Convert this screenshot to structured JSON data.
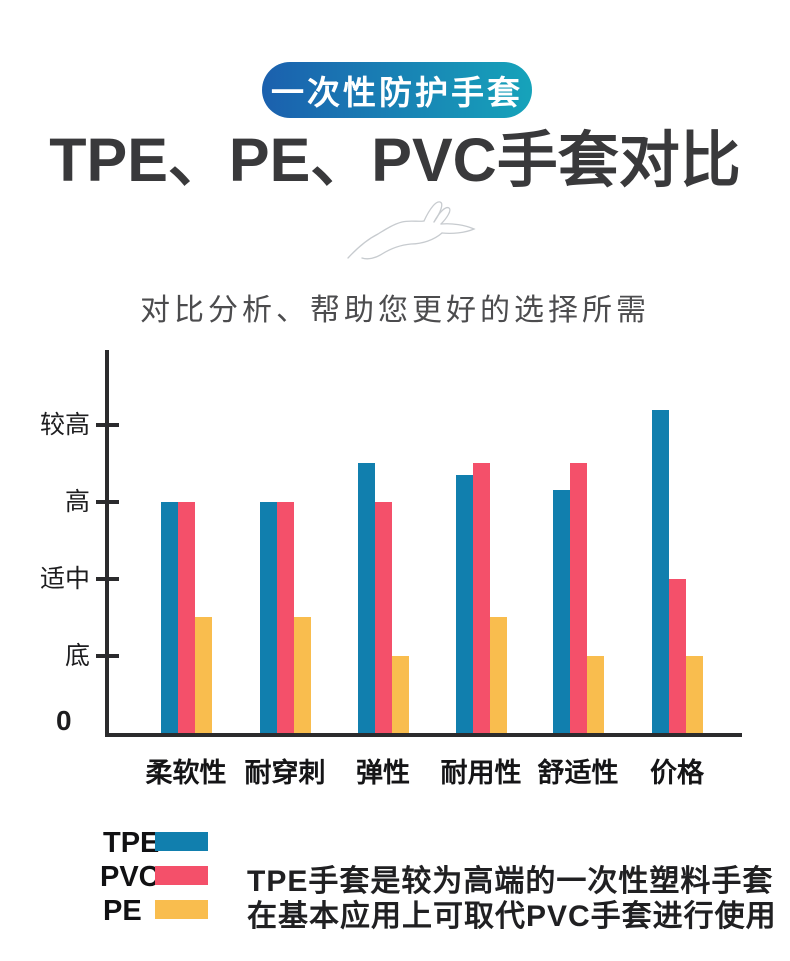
{
  "badge": {
    "label": "一次性防护手套",
    "gradient_left": "#1b60ae",
    "gradient_right": "#16a3ba"
  },
  "title": "TPE、PE、PVC手套对比",
  "subtitle": "对比分析、帮助您更好的选择所需",
  "chart_data": {
    "type": "bar",
    "title": "TPE、PE、PVC手套对比",
    "categories": [
      "柔软性",
      "耐穿刺",
      "弹性",
      "耐用性",
      "舒适性",
      "价格"
    ],
    "series": [
      {
        "name": "TPE",
        "color": "#117fae",
        "values": [
          3,
          3,
          3.5,
          3.35,
          3.15,
          4.2
        ]
      },
      {
        "name": "PVC",
        "color": "#f4506a",
        "values": [
          3,
          3,
          3,
          3.5,
          3.5,
          2
        ]
      },
      {
        "name": "PE",
        "color": "#f9bd4e",
        "values": [
          1.5,
          1.5,
          1,
          1.5,
          1,
          1
        ]
      }
    ],
    "y_ticks": [
      {
        "label": "0",
        "value": 0
      },
      {
        "label": "底",
        "value": 1
      },
      {
        "label": "适中",
        "value": 2
      },
      {
        "label": "高",
        "value": 3
      },
      {
        "label": "较高",
        "value": 4
      }
    ],
    "ylim": [
      0,
      4.95
    ],
    "grid": false,
    "legend_position": "bottom-left",
    "axis_color": "#2b2b2d"
  },
  "legend": {
    "items": [
      {
        "label": "TPE",
        "color": "#117fae"
      },
      {
        "label": "PVC",
        "color": "#f4506a"
      },
      {
        "label": "PE",
        "color": "#f9bd4e"
      }
    ]
  },
  "description": {
    "line1": "TPE手套是较为高端的一次性塑料手套",
    "line2": "在基本应用上可取代PVC手套进行使用"
  }
}
